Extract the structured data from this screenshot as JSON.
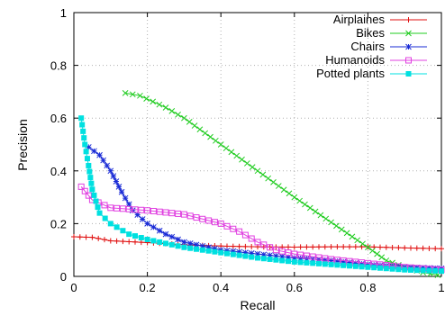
{
  "chart_data": {
    "type": "line",
    "xlabel": "Recall",
    "ylabel": "Precision",
    "xlim": [
      0,
      1
    ],
    "ylim": [
      0,
      1
    ],
    "xticks": [
      "0",
      "0.2",
      "0.4",
      "0.6",
      "0.8",
      "1"
    ],
    "yticks": [
      "0",
      "0.2",
      "0.4",
      "0.6",
      "0.8",
      "1"
    ],
    "grid": true,
    "legend_position": "top-right",
    "series": [
      {
        "name": "Airplaines",
        "color": "#e01010",
        "marker": "plus",
        "x": [
          0.0,
          0.05,
          0.1,
          0.2,
          0.3,
          0.4,
          0.5,
          0.6,
          0.7,
          0.8,
          0.9,
          1.0
        ],
        "y": [
          0.15,
          0.148,
          0.135,
          0.128,
          0.12,
          0.115,
          0.112,
          0.111,
          0.112,
          0.112,
          0.108,
          0.105
        ]
      },
      {
        "name": "Bikes",
        "color": "#22cc22",
        "marker": "cross",
        "x": [
          0.14,
          0.18,
          0.25,
          0.3,
          0.4,
          0.5,
          0.6,
          0.7,
          0.8,
          0.85,
          0.9,
          0.95,
          0.99
        ],
        "y": [
          0.695,
          0.685,
          0.64,
          0.6,
          0.5,
          0.4,
          0.3,
          0.205,
          0.11,
          0.06,
          0.035,
          0.015,
          0.005
        ]
      },
      {
        "name": "Chairs",
        "color": "#1a2bd6",
        "marker": "star",
        "x": [
          0.04,
          0.07,
          0.1,
          0.13,
          0.16,
          0.2,
          0.25,
          0.3,
          0.4,
          0.5,
          0.6,
          0.7,
          0.8,
          0.9,
          1.0
        ],
        "y": [
          0.49,
          0.46,
          0.4,
          0.32,
          0.25,
          0.2,
          0.16,
          0.13,
          0.1,
          0.085,
          0.07,
          0.06,
          0.045,
          0.035,
          0.03
        ]
      },
      {
        "name": "Humanoids",
        "color": "#e040e0",
        "marker": "square-open",
        "x": [
          0.02,
          0.05,
          0.1,
          0.2,
          0.3,
          0.4,
          0.45,
          0.5,
          0.55,
          0.6,
          0.7,
          0.8,
          0.9,
          1.0
        ],
        "y": [
          0.34,
          0.29,
          0.26,
          0.25,
          0.235,
          0.2,
          0.17,
          0.13,
          0.1,
          0.085,
          0.065,
          0.05,
          0.035,
          0.025
        ]
      },
      {
        "name": "Potted plants",
        "color": "#00e0e0",
        "marker": "square-filled",
        "x": [
          0.02,
          0.03,
          0.04,
          0.05,
          0.07,
          0.1,
          0.15,
          0.2,
          0.3,
          0.4,
          0.5,
          0.6,
          0.7,
          0.8,
          0.9,
          1.0
        ],
        "y": [
          0.6,
          0.5,
          0.42,
          0.33,
          0.24,
          0.2,
          0.16,
          0.14,
          0.11,
          0.09,
          0.07,
          0.055,
          0.045,
          0.035,
          0.025,
          0.02
        ]
      }
    ]
  }
}
